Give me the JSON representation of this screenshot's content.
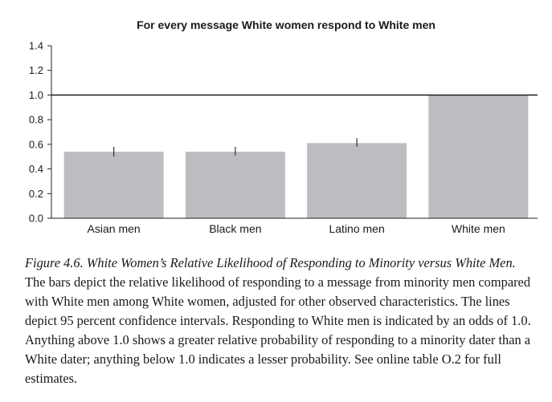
{
  "chart_data": {
    "type": "bar",
    "title": "For every message White women respond to White men",
    "xlabel": "",
    "ylabel": "",
    "categories": [
      "Asian men",
      "Black men",
      "Latino men",
      "White men"
    ],
    "values": [
      0.54,
      0.54,
      0.61,
      1.0
    ],
    "error_bars": [
      [
        0.5,
        0.58
      ],
      [
        0.51,
        0.58
      ],
      [
        0.58,
        0.65
      ],
      null
    ],
    "reference_line": 1.0,
    "ylim": [
      0,
      1.4
    ],
    "yticks": [
      "0.0",
      "0.2",
      "0.4",
      "0.6",
      "0.8",
      "1.0",
      "1.2",
      "1.4"
    ],
    "grid": false,
    "bar_color": "#bcbdc0"
  },
  "caption": {
    "title": "Figure 4.6. White Women’s Relative Likelihood of Responding to Minority versus White Men.",
    "text": " The bars depict the relative likelihood of responding to a message from minority men compared with White men among White women, adjusted for other observed characteristics. The lines depict 95 percent confidence intervals. Responding to White men is indicated by an odds of 1.0. Anything above 1.0 shows a greater relative probability of responding to a minority dater than a White dater; anything below 1.0 indicates a lesser probability. See online table O.2 for full estimates."
  }
}
